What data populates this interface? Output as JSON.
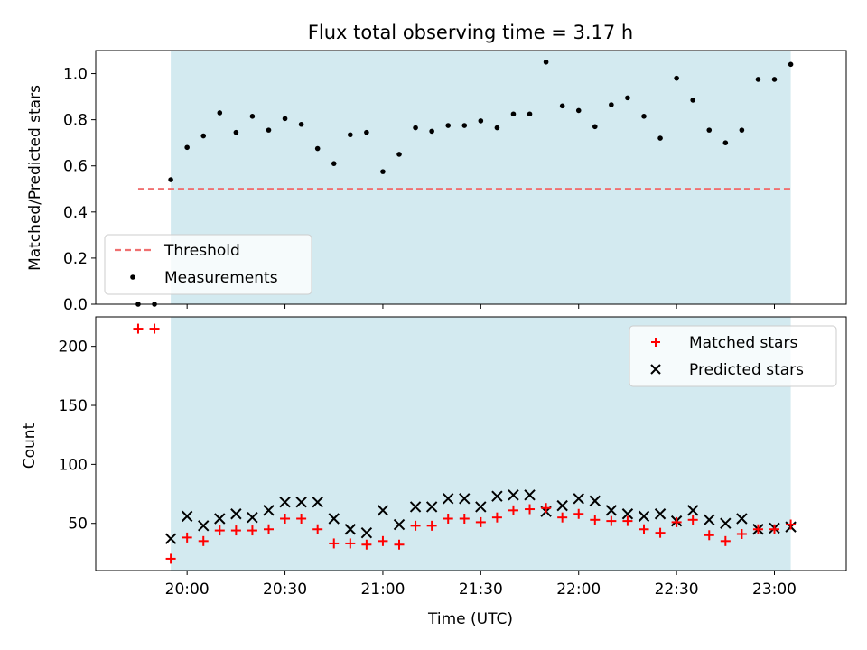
{
  "chart_data": [
    {
      "type": "scatter",
      "title": "Flux total observing time = 3.17 h",
      "ylabel": "Matched/Predicted stars",
      "ylim": [
        0,
        1.1
      ],
      "yticks": [
        0.0,
        0.2,
        0.4,
        0.6,
        0.8,
        1.0
      ],
      "ytick_labels": [
        "0.0",
        "0.2",
        "0.4",
        "0.6",
        "0.8",
        "1.0"
      ],
      "grid": false,
      "legend_position": "lower-left",
      "shaded_interval": [
        "19:55",
        "23:05"
      ],
      "shade_color": "#d3eaf0",
      "series": [
        {
          "name": "Threshold",
          "style": "dashed-line",
          "color": "#f07070",
          "x": [
            "19:45",
            "23:05"
          ],
          "y": [
            0.5,
            0.5
          ]
        },
        {
          "name": "Measurements",
          "style": "dot",
          "color": "#000000",
          "x": [
            "19:45",
            "19:50",
            "19:55",
            "20:00",
            "20:05",
            "20:10",
            "20:15",
            "20:20",
            "20:25",
            "20:30",
            "20:35",
            "20:40",
            "20:45",
            "20:50",
            "20:55",
            "21:00",
            "21:05",
            "21:10",
            "21:15",
            "21:20",
            "21:25",
            "21:30",
            "21:35",
            "21:40",
            "21:45",
            "21:50",
            "21:55",
            "22:00",
            "22:05",
            "22:10",
            "22:15",
            "22:20",
            "22:25",
            "22:30",
            "22:35",
            "22:40",
            "22:45",
            "22:50",
            "22:55",
            "23:00",
            "23:05"
          ],
          "y": [
            0.0,
            0.0,
            0.54,
            0.68,
            0.73,
            0.83,
            0.745,
            0.815,
            0.755,
            0.805,
            0.78,
            0.675,
            0.61,
            0.735,
            0.745,
            0.575,
            0.65,
            0.765,
            0.75,
            0.775,
            0.775,
            0.795,
            0.765,
            0.825,
            0.825,
            1.05,
            0.86,
            0.84,
            0.77,
            0.865,
            0.895,
            0.815,
            0.72,
            0.98,
            0.885,
            0.755,
            0.7,
            0.755,
            0.975,
            0.975,
            1.04
          ]
        }
      ]
    },
    {
      "type": "scatter",
      "xlabel": "Time (UTC)",
      "ylabel": "Count",
      "ylim": [
        10,
        225
      ],
      "yticks": [
        50,
        100,
        150,
        200
      ],
      "ytick_labels": [
        "50",
        "100",
        "150",
        "200"
      ],
      "xlim": [
        "19:32",
        "23:22"
      ],
      "xticks": [
        "20:00",
        "20:30",
        "21:00",
        "21:30",
        "22:00",
        "22:30",
        "23:00"
      ],
      "xtick_labels": [
        "20:00",
        "20:30",
        "21:00",
        "21:30",
        "22:00",
        "22:30",
        "23:00"
      ],
      "grid": false,
      "legend_position": "top-right",
      "shaded_interval": [
        "19:55",
        "23:05"
      ],
      "shade_color": "#d3eaf0",
      "series": [
        {
          "name": "Matched stars",
          "style": "plus",
          "color": "#ff0000",
          "x": [
            "19:45",
            "19:50",
            "19:55",
            "20:00",
            "20:05",
            "20:10",
            "20:15",
            "20:20",
            "20:25",
            "20:30",
            "20:35",
            "20:40",
            "20:45",
            "20:50",
            "20:55",
            "21:00",
            "21:05",
            "21:10",
            "21:15",
            "21:20",
            "21:25",
            "21:30",
            "21:35",
            "21:40",
            "21:45",
            "21:50",
            "21:55",
            "22:00",
            "22:05",
            "22:10",
            "22:15",
            "22:20",
            "22:25",
            "22:30",
            "22:35",
            "22:40",
            "22:45",
            "22:50",
            "22:55",
            "23:00",
            "23:05"
          ],
          "y": [
            215,
            215,
            20,
            38,
            35,
            44,
            44,
            44,
            45,
            54,
            54,
            45,
            33,
            33,
            32,
            35,
            32,
            48,
            48,
            54,
            54,
            51,
            55,
            61,
            62,
            63,
            55,
            58,
            53,
            52,
            52,
            45,
            42,
            51,
            53,
            40,
            35,
            41,
            45,
            45,
            49
          ]
        },
        {
          "name": "Predicted stars",
          "style": "x",
          "color": "#000000",
          "x": [
            "19:55",
            "20:00",
            "20:05",
            "20:10",
            "20:15",
            "20:20",
            "20:25",
            "20:30",
            "20:35",
            "20:40",
            "20:45",
            "20:50",
            "20:55",
            "21:00",
            "21:05",
            "21:10",
            "21:15",
            "21:20",
            "21:25",
            "21:30",
            "21:35",
            "21:40",
            "21:45",
            "21:50",
            "21:55",
            "22:00",
            "22:05",
            "22:10",
            "22:15",
            "22:20",
            "22:25",
            "22:30",
            "22:35",
            "22:40",
            "22:45",
            "22:50",
            "22:55",
            "23:00",
            "23:05"
          ],
          "y": [
            37,
            56,
            48,
            54,
            58,
            55,
            61,
            68,
            68,
            68,
            54,
            45,
            42,
            61,
            49,
            64,
            64,
            71,
            71,
            64,
            73,
            74,
            74,
            60,
            65,
            71,
            69,
            61,
            58,
            56,
            58,
            52,
            61,
            53,
            50,
            54,
            45,
            46,
            47
          ]
        }
      ]
    }
  ]
}
